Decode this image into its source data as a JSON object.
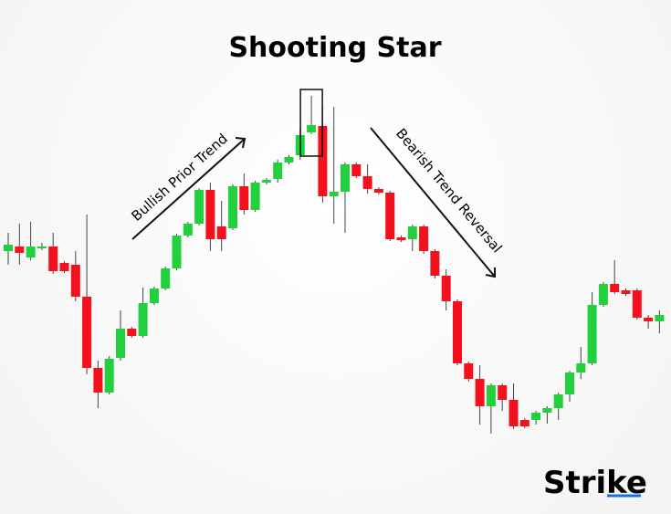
{
  "chart_data": {
    "type": "candlestick",
    "title": "Shooting Star",
    "annotations": [
      "Bullish Prior Trend",
      "Bearish Trend Reversal"
    ],
    "brand": "Strike",
    "up_color": "#22cf3c",
    "down_color": "#f2111c",
    "ylim": [
      0,
      500
    ],
    "open": [
      225,
      230,
      218,
      228,
      230,
      212,
      210,
      175,
      97,
      70,
      108,
      140,
      132,
      168,
      184,
      206,
      242,
      255,
      292,
      252,
      250,
      296,
      270,
      300,
      304,
      322,
      330,
      355,
      362,
      285,
      290,
      320,
      307,
      293,
      289,
      240,
      238,
      252,
      225,
      198,
      170,
      102,
      85,
      55,
      78,
      62,
      40,
      40,
      48,
      53,
      68,
      92,
      102,
      166,
      189,
      182,
      182,
      152,
      148
    ],
    "high": [
      245,
      255,
      257,
      234,
      245,
      214,
      225,
      265,
      105,
      110,
      160,
      142,
      185,
      186,
      208,
      244,
      257,
      294,
      300,
      280,
      298,
      310,
      302,
      305,
      325,
      330,
      360,
      395,
      382,
      383,
      322,
      322,
      320,
      295,
      291,
      242,
      254,
      254,
      227,
      205,
      172,
      104,
      100,
      80,
      80,
      80,
      42,
      50,
      55,
      70,
      94,
      120,
      180,
      191,
      215,
      184,
      184,
      155,
      160
    ],
    "low": [
      210,
      210,
      215,
      226,
      200,
      201,
      170,
      90,
      53,
      68,
      105,
      130,
      130,
      166,
      182,
      204,
      240,
      253,
      225,
      225,
      248,
      265,
      268,
      298,
      300,
      320,
      325,
      353,
      278,
      255,
      245,
      305,
      288,
      287,
      236,
      235,
      225,
      222,
      195,
      160,
      100,
      82,
      35,
      25,
      50,
      30,
      31,
      35,
      36,
      40,
      60,
      85,
      100,
      164,
      178,
      176,
      150,
      140,
      135
    ],
    "close": [
      232,
      223,
      230,
      230,
      203,
      203,
      175,
      97,
      70,
      107,
      140,
      132,
      168,
      184,
      206,
      242,
      255,
      292,
      238,
      238,
      296,
      270,
      300,
      303,
      322,
      328,
      352,
      363,
      285,
      290,
      320,
      307,
      293,
      289,
      238,
      237,
      252,
      225,
      198,
      170,
      102,
      85,
      55,
      78,
      62,
      33,
      33,
      48,
      53,
      68,
      92,
      102,
      166,
      189,
      180,
      178,
      152,
      148,
      155
    ]
  }
}
